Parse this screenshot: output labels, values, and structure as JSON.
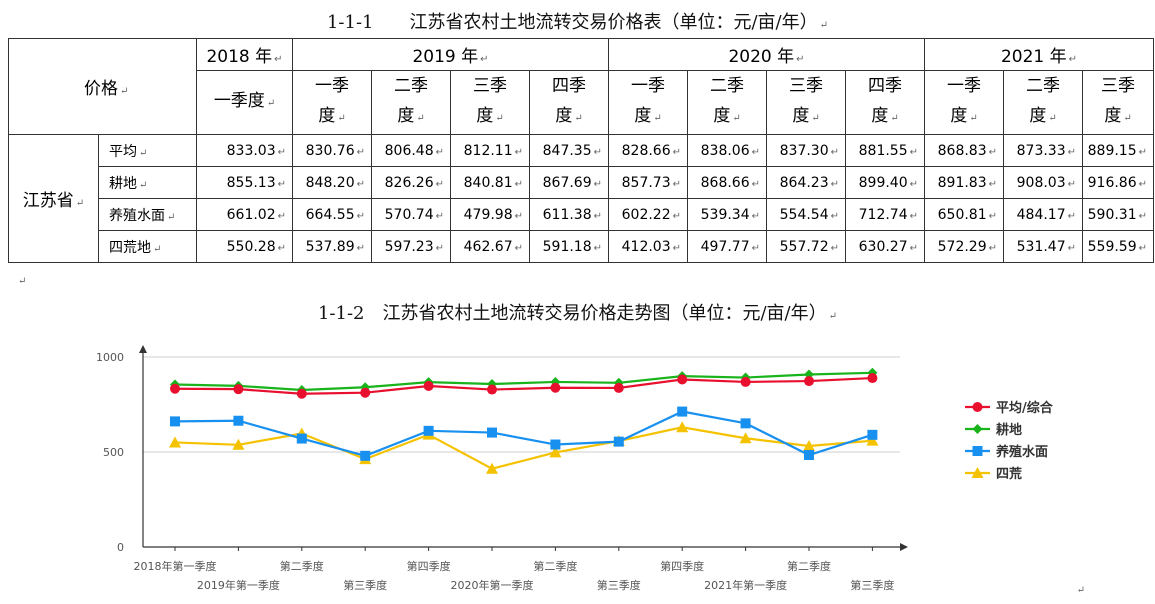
{
  "table_caption": "1-1-1　　江苏省农村土地流转交易价格表（单位：元/亩/年）",
  "chart_caption": "1-1-2　江苏省农村土地流转交易价格走势图（单位：元/亩/年）",
  "header": {
    "price_label": "价格",
    "years": [
      "2018 年",
      "2019 年",
      "2020 年",
      "2021 年"
    ],
    "quarters": [
      [
        "一季度"
      ],
      [
        "一季",
        "度"
      ],
      [
        "二季",
        "度"
      ],
      [
        "三季",
        "度"
      ],
      [
        "四季",
        "度"
      ],
      [
        "一季",
        "度"
      ],
      [
        "二季",
        "度"
      ],
      [
        "三季",
        "度"
      ],
      [
        "四季",
        "度"
      ],
      [
        "一季",
        "度"
      ],
      [
        "二季",
        "度"
      ],
      [
        "三季",
        "度"
      ]
    ]
  },
  "province": "江苏省",
  "rows": [
    {
      "label": "平均",
      "values": [
        "833.03",
        "830.76",
        "806.48",
        "812.11",
        "847.35",
        "828.66",
        "838.06",
        "837.30",
        "881.55",
        "868.83",
        "873.33",
        "889.15"
      ]
    },
    {
      "label": "耕地",
      "values": [
        "855.13",
        "848.20",
        "826.26",
        "840.81",
        "867.69",
        "857.73",
        "868.66",
        "864.23",
        "899.40",
        "891.83",
        "908.03",
        "916.86"
      ]
    },
    {
      "label": "养殖水面",
      "values": [
        "661.02",
        "664.55",
        "570.74",
        "479.98",
        "611.38",
        "602.22",
        "539.34",
        "554.54",
        "712.74",
        "650.81",
        "484.17",
        "590.31"
      ]
    },
    {
      "label": "四荒地",
      "values": [
        "550.28",
        "537.89",
        "597.23",
        "462.67",
        "591.18",
        "412.03",
        "497.77",
        "557.72",
        "630.27",
        "572.29",
        "531.47",
        "559.59"
      ]
    }
  ],
  "chart_data": {
    "type": "line",
    "x": [
      "2018年第一季度",
      "2019年第一季度",
      "第二季度",
      "第三季度",
      "第四季度",
      "2020年第一季度",
      "第二季度",
      "第三季度",
      "第四季度",
      "2021年第一季度",
      "第二季度",
      "第三季度"
    ],
    "ylim": [
      0,
      1000
    ],
    "yticks": [
      0,
      500,
      1000
    ],
    "grid": true,
    "legend_position": "right",
    "series": [
      {
        "name": "平均/综合",
        "color": "#e8102e",
        "marker": "circle",
        "values": [
          833.03,
          830.76,
          806.48,
          812.11,
          847.35,
          828.66,
          838.06,
          837.3,
          881.55,
          868.83,
          873.33,
          889.15
        ]
      },
      {
        "name": "耕地",
        "color": "#19b31b",
        "marker": "diamond",
        "values": [
          855.13,
          848.2,
          826.26,
          840.81,
          867.69,
          857.73,
          868.66,
          864.23,
          899.4,
          891.83,
          908.03,
          916.86
        ]
      },
      {
        "name": "养殖水面",
        "color": "#1890f0",
        "marker": "square",
        "values": [
          661.02,
          664.55,
          570.74,
          479.98,
          611.38,
          602.22,
          539.34,
          554.54,
          712.74,
          650.81,
          484.17,
          590.31
        ]
      },
      {
        "name": "四荒",
        "color": "#f5c200",
        "marker": "triangle",
        "values": [
          550.28,
          537.89,
          597.23,
          462.67,
          591.18,
          412.03,
          497.77,
          557.72,
          630.27,
          572.29,
          531.47,
          559.59
        ]
      }
    ]
  }
}
